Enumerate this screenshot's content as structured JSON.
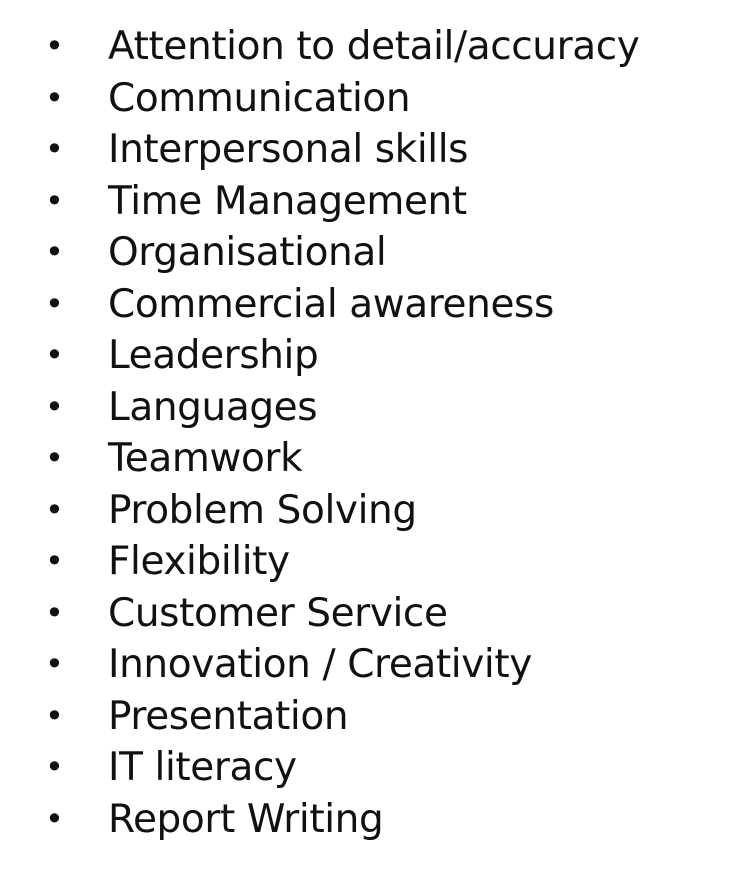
{
  "skills": {
    "items": [
      "Attention to detail/accuracy",
      "Communication",
      "Interpersonal skills",
      "Time Management",
      "Organisational",
      "Commercial awareness",
      "Leadership",
      "Languages",
      "Teamwork",
      "Problem Solving",
      "Flexibility",
      "Customer Service",
      "Innovation / Creativity",
      "Presentation",
      "IT literacy",
      "Report Writing"
    ]
  }
}
